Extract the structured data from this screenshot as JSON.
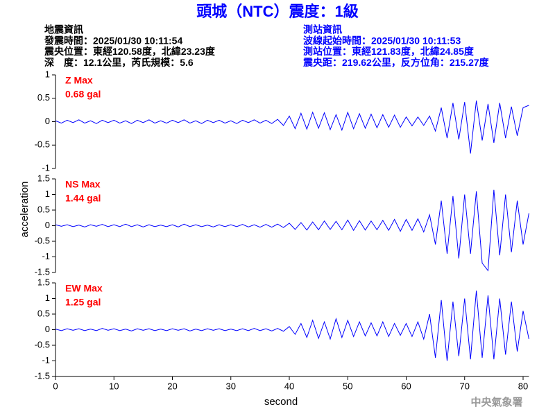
{
  "header": {
    "title": "頭城（NTC）震度：1級",
    "left": [
      "地震資訊",
      "發震時間：2025/01/30 10:11:54",
      "震央位置：東經120.58度，北緯23.23度",
      "深　度：12.1公里，芮氏規模：5.6"
    ],
    "right": [
      "測站資訊",
      "波線起始時間：2025/01/30 10:11:53",
      "測站位置：東經121.83度，北緯24.85度",
      "震央距：219.62公里，反方位角：215.27度"
    ],
    "footer": "中央氣象署"
  },
  "chart_data": {
    "type": "line",
    "xlabel": "second",
    "ylabel": "acceleration",
    "xlim": [
      0,
      81
    ],
    "xticks": [
      0,
      10,
      20,
      30,
      40,
      50,
      60,
      70,
      80
    ],
    "x": [
      0,
      1,
      2,
      3,
      4,
      5,
      6,
      7,
      8,
      9,
      10,
      11,
      12,
      13,
      14,
      15,
      16,
      17,
      18,
      19,
      20,
      21,
      22,
      23,
      24,
      25,
      26,
      27,
      28,
      29,
      30,
      31,
      32,
      33,
      34,
      35,
      36,
      37,
      38,
      39,
      40,
      41,
      42,
      43,
      44,
      45,
      46,
      47,
      48,
      49,
      50,
      51,
      52,
      53,
      54,
      55,
      56,
      57,
      58,
      59,
      60,
      61,
      62,
      63,
      64,
      65,
      66,
      67,
      68,
      69,
      70,
      71,
      72,
      73,
      74,
      75,
      76,
      77,
      78,
      79,
      80,
      81
    ],
    "panels": [
      {
        "annotations": [
          "Z Max",
          "0.68 gal"
        ],
        "color": "#0000ff",
        "ylim": [
          -1,
          1
        ],
        "yticks": [
          -1,
          -0.5,
          0,
          0.5,
          1
        ],
        "values": [
          0.02,
          -0.03,
          0.03,
          -0.02,
          0.04,
          -0.03,
          0.02,
          -0.04,
          0.03,
          -0.02,
          0.03,
          -0.03,
          0.02,
          -0.04,
          0.03,
          -0.02,
          0.04,
          -0.03,
          0.02,
          -0.03,
          0.03,
          -0.02,
          0.04,
          -0.03,
          0.02,
          -0.04,
          0.03,
          -0.02,
          0.03,
          -0.03,
          0.02,
          -0.04,
          0.03,
          -0.02,
          0.04,
          -0.03,
          0.03,
          -0.04,
          0.05,
          -0.08,
          0.12,
          -0.15,
          0.18,
          -0.16,
          0.2,
          -0.14,
          0.19,
          -0.17,
          0.15,
          -0.18,
          0.2,
          -0.15,
          0.17,
          -0.14,
          0.16,
          -0.13,
          0.15,
          -0.12,
          0.14,
          -0.12,
          0.1,
          -0.09,
          0.1,
          -0.08,
          0.12,
          -0.2,
          0.3,
          -0.35,
          0.4,
          -0.38,
          0.42,
          -0.68,
          0.45,
          -0.4,
          0.38,
          -0.45,
          0.4,
          -0.35,
          0.32,
          -0.3,
          0.3,
          0.35
        ]
      },
      {
        "annotations": [
          "NS Max",
          "1.44 gal"
        ],
        "color": "#0000ff",
        "ylim": [
          -1.5,
          1.5
        ],
        "yticks": [
          -1.5,
          -1,
          -0.5,
          0,
          0.5,
          1,
          1.5
        ],
        "values": [
          0.03,
          -0.02,
          0.03,
          -0.03,
          0.02,
          -0.04,
          0.03,
          -0.02,
          0.04,
          -0.03,
          0.03,
          -0.03,
          0.05,
          -0.03,
          0.03,
          -0.04,
          0.03,
          -0.03,
          0.02,
          -0.03,
          0.03,
          -0.04,
          0.05,
          -0.03,
          0.03,
          -0.03,
          0.02,
          -0.04,
          0.03,
          -0.03,
          0.03,
          -0.03,
          0.04,
          -0.04,
          0.03,
          -0.05,
          0.04,
          -0.05,
          0.05,
          -0.06,
          0.08,
          -0.12,
          0.1,
          -0.14,
          0.12,
          -0.13,
          0.15,
          -0.12,
          0.14,
          -0.13,
          0.18,
          -0.15,
          0.16,
          -0.14,
          0.15,
          -0.13,
          0.17,
          -0.15,
          0.2,
          -0.18,
          0.2,
          -0.15,
          0.22,
          -0.2,
          0.35,
          -0.6,
          0.8,
          -0.9,
          0.95,
          -1.05,
          1.0,
          -0.9,
          1.1,
          -1.2,
          -1.44,
          1.15,
          -0.95,
          1.0,
          -0.85,
          0.8,
          -0.6,
          0.4
        ]
      },
      {
        "annotations": [
          "EW Max",
          "1.25 gal"
        ],
        "color": "#0000ff",
        "ylim": [
          -1.5,
          1.5
        ],
        "yticks": [
          -1.5,
          -1,
          -0.5,
          0,
          0.5,
          1,
          1.5
        ],
        "values": [
          0.02,
          -0.03,
          0.03,
          -0.02,
          0.03,
          -0.03,
          0.02,
          -0.03,
          0.04,
          -0.02,
          0.03,
          -0.03,
          0.02,
          -0.04,
          0.03,
          -0.02,
          0.03,
          -0.03,
          0.02,
          -0.03,
          0.03,
          -0.02,
          0.03,
          -0.04,
          0.02,
          -0.03,
          0.03,
          -0.02,
          0.03,
          -0.03,
          0.02,
          -0.03,
          0.03,
          -0.03,
          0.04,
          -0.03,
          0.03,
          -0.04,
          0.04,
          -0.05,
          0.1,
          -0.15,
          0.2,
          -0.25,
          0.3,
          -0.28,
          0.25,
          -0.3,
          0.35,
          -0.25,
          0.3,
          -0.22,
          0.25,
          -0.2,
          0.22,
          -0.2,
          0.25,
          -0.22,
          0.2,
          -0.18,
          0.2,
          -0.22,
          0.25,
          -0.3,
          0.5,
          -0.9,
          0.95,
          -1.0,
          0.9,
          -0.85,
          1.0,
          -0.95,
          1.25,
          -0.9,
          1.1,
          -0.95,
          1.0,
          -0.8,
          0.9,
          -0.7,
          0.6,
          -0.3
        ]
      }
    ]
  }
}
